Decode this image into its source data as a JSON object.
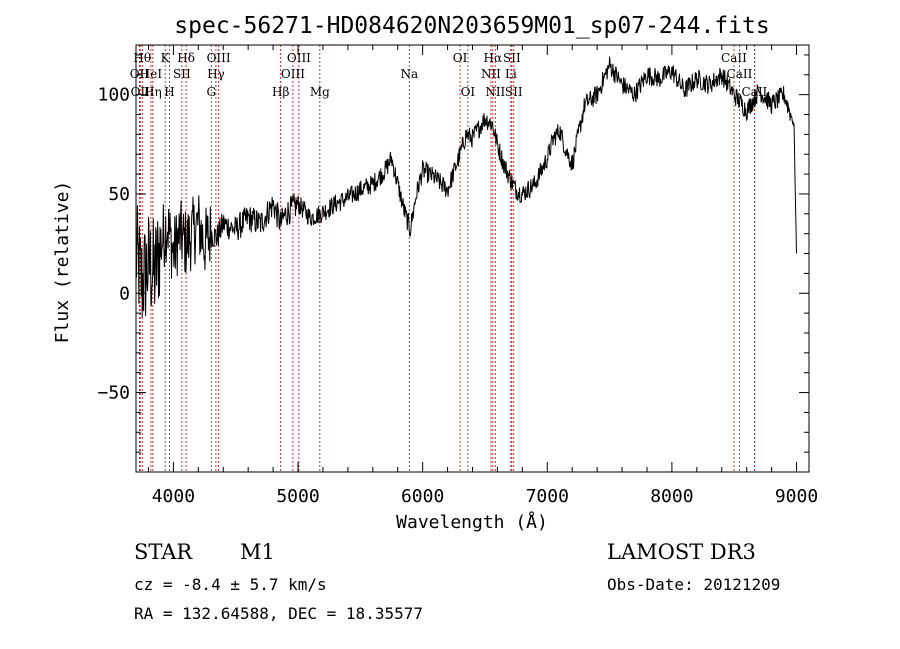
{
  "chart_data": {
    "type": "line",
    "title": "spec-56271-HD084620N203659M01_sp07-244.fits",
    "xlabel": "Wavelength (Å)",
    "ylabel": "Flux (relative)",
    "xlim": [
      3700,
      9100
    ],
    "ylim": [
      -90,
      125
    ],
    "xticks": [
      4000,
      5000,
      6000,
      7000,
      8000,
      9000
    ],
    "yticks": [
      -50,
      0,
      50,
      100
    ],
    "series": [
      {
        "name": "spectrum",
        "x": [
          3700,
          3750,
          3800,
          3850,
          3900,
          3950,
          4000,
          4050,
          4100,
          4150,
          4200,
          4250,
          4300,
          4350,
          4400,
          4500,
          4600,
          4700,
          4800,
          4860,
          4900,
          5000,
          5100,
          5180,
          5300,
          5400,
          5500,
          5600,
          5700,
          5750,
          5800,
          5850,
          5900,
          5950,
          6000,
          6100,
          6200,
          6300,
          6350,
          6400,
          6500,
          6560,
          6600,
          6650,
          6700,
          6750,
          6800,
          6900,
          7000,
          7050,
          7100,
          7150,
          7200,
          7300,
          7400,
          7500,
          7550,
          7600,
          7700,
          7800,
          7900,
          8000,
          8100,
          8200,
          8300,
          8400,
          8500,
          8600,
          8700,
          8800,
          8900,
          8980,
          9000
        ],
        "y": [
          20,
          5,
          15,
          10,
          25,
          35,
          20,
          30,
          25,
          30,
          35,
          25,
          30,
          28,
          35,
          32,
          38,
          35,
          45,
          35,
          40,
          45,
          38,
          40,
          45,
          48,
          52,
          55,
          62,
          68,
          55,
          42,
          32,
          50,
          62,
          58,
          52,
          70,
          80,
          78,
          88,
          85,
          75,
          65,
          58,
          52,
          50,
          55,
          68,
          78,
          82,
          72,
          65,
          95,
          100,
          115,
          110,
          105,
          100,
          110,
          108,
          112,
          102,
          108,
          105,
          110,
          100,
          92,
          102,
          95,
          100,
          85,
          20
        ]
      }
    ],
    "line_markers": [
      {
        "wavelength": 3727,
        "label": "OII",
        "row": 2
      },
      {
        "wavelength": 3734,
        "label": "OII",
        "row": 3
      },
      {
        "wavelength": 3750,
        "label": "Hθ",
        "row": 1
      },
      {
        "wavelength": 3820,
        "label": "HeI",
        "row": 2
      },
      {
        "wavelength": 3835,
        "label": "Hη",
        "row": 3
      },
      {
        "wavelength": 3934,
        "label": "K",
        "row": 1
      },
      {
        "wavelength": 3969,
        "label": "H",
        "row": 3
      },
      {
        "wavelength": 4068,
        "label": "SII",
        "row": 2
      },
      {
        "wavelength": 4102,
        "label": "Hδ",
        "row": 1
      },
      {
        "wavelength": 4304,
        "label": "G",
        "row": 3
      },
      {
        "wavelength": 4341,
        "label": "Hγ",
        "row": 2
      },
      {
        "wavelength": 4363,
        "label": "OIII",
        "row": 1
      },
      {
        "wavelength": 4861,
        "label": "Hβ",
        "row": 3
      },
      {
        "wavelength": 4959,
        "label": "OIII",
        "row": 2
      },
      {
        "wavelength": 5007,
        "label": "OIII",
        "row": 1
      },
      {
        "wavelength": 5175,
        "label": "Mg",
        "row": 3
      },
      {
        "wavelength": 5893,
        "label": "Na",
        "row": 2
      },
      {
        "wavelength": 6300,
        "label": "OI",
        "row": 1
      },
      {
        "wavelength": 6363,
        "label": "OI",
        "row": 3
      },
      {
        "wavelength": 6548,
        "label": "NII",
        "row": 2
      },
      {
        "wavelength": 6563,
        "label": "Hα",
        "row": 1
      },
      {
        "wavelength": 6583,
        "label": "NII",
        "row": 3
      },
      {
        "wavelength": 6708,
        "label": "Li",
        "row": 2
      },
      {
        "wavelength": 6716,
        "label": "SII",
        "row": 1
      },
      {
        "wavelength": 6731,
        "label": "SII",
        "row": 3
      },
      {
        "wavelength": 8498,
        "label": "CaII",
        "row": 1
      },
      {
        "wavelength": 8542,
        "label": "CaII",
        "row": 2
      },
      {
        "wavelength": 8662,
        "label": "CaII",
        "row": 3
      }
    ]
  },
  "info": {
    "object_class": "STAR",
    "subclass": "M1",
    "survey": "LAMOST DR3",
    "redshift": "cz = -8.4 ± 5.7 km/s",
    "obs_date": "Obs-Date: 20121209",
    "coords": "RA = 132.64588, DEC =  18.35577"
  }
}
